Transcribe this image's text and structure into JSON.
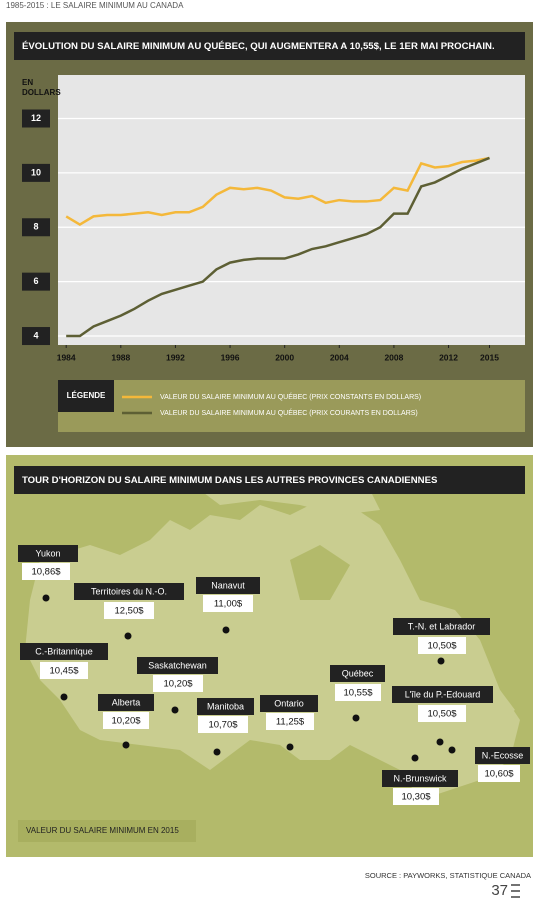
{
  "header": {
    "title": "1985-2015 : LE SALAIRE MINIMUM AU CANADA"
  },
  "chart_data": {
    "type": "line",
    "title": "ÉVOLUTION DU SALAIRE MINIMUM AU QUÉBEC, QUI AUGMENTERA A 10,55$, LE 1ER MAI PROCHAIN.",
    "y_label": "EN DOLLARS",
    "legend_title": "LÉGENDE",
    "x": [
      1984,
      1985,
      1986,
      1987,
      1988,
      1989,
      1990,
      1991,
      1992,
      1993,
      1994,
      1995,
      1996,
      1997,
      1998,
      1999,
      2000,
      2001,
      2002,
      2003,
      2004,
      2005,
      2006,
      2007,
      2008,
      2009,
      2010,
      2011,
      2012,
      2013,
      2014,
      2015
    ],
    "xlim": [
      1983.4,
      2017.6
    ],
    "xticks": [
      1984,
      1988,
      1992,
      1996,
      2000,
      2004,
      2008,
      2012,
      2015
    ],
    "ylim": [
      3.67,
      13.6
    ],
    "yticks": [
      4,
      6,
      8,
      10,
      12
    ],
    "grid": true,
    "series": [
      {
        "name": "VALEUR DU SALAIRE MINIMUM AU QUÉBEC (PRIX CONSTANTS EN DOLLARS)",
        "color": "#f4b83a",
        "values": [
          8.4,
          8.1,
          8.4,
          8.45,
          8.45,
          8.5,
          8.55,
          8.45,
          8.55,
          8.55,
          8.75,
          9.2,
          9.45,
          9.4,
          9.45,
          9.35,
          9.1,
          9.05,
          9.15,
          8.9,
          9.0,
          8.95,
          8.95,
          9.0,
          9.45,
          9.35,
          10.35,
          10.2,
          10.25,
          10.4,
          10.45,
          10.55
        ]
      },
      {
        "name": "VALEUR DU SALAIRE MINIMUM AU QUÉBEC (PRIX COURANTS EN DOLLARS)",
        "color": "#5d5f34",
        "values": [
          4.0,
          4.0,
          4.35,
          4.55,
          4.75,
          5.0,
          5.3,
          5.55,
          5.7,
          5.85,
          6.0,
          6.45,
          6.7,
          6.8,
          6.85,
          6.85,
          6.85,
          7.0,
          7.2,
          7.3,
          7.45,
          7.6,
          7.75,
          8.0,
          8.5,
          8.5,
          9.5,
          9.65,
          9.9,
          10.15,
          10.35,
          10.55
        ]
      }
    ]
  },
  "map": {
    "title": "TOUR D'HORIZON DU SALAIRE MINIMUM DANS LES AUTRES PROVINCES CANADIENNES",
    "provinces": [
      {
        "name": "Yukon",
        "wage": "10,86$"
      },
      {
        "name": "Territoires du N.-O.",
        "wage": "12,50$"
      },
      {
        "name": "Nanavut",
        "wage": "11,00$"
      },
      {
        "name": "C.-Britannique",
        "wage": "10,45$"
      },
      {
        "name": "Saskatchewan",
        "wage": "10,20$"
      },
      {
        "name": "Alberta",
        "wage": "10,20$"
      },
      {
        "name": "Manitoba",
        "wage": "10,70$"
      },
      {
        "name": "Ontario",
        "wage": "11,25$"
      },
      {
        "name": "Québec",
        "wage": "10,55$"
      },
      {
        "name": "T.-N. et Labrador",
        "wage": "10,50$"
      },
      {
        "name": "L'île du P.-Edouard",
        "wage": "10,50$"
      },
      {
        "name": "N.-Ecosse",
        "wage": "10,60$"
      },
      {
        "name": "N.-Brunswick",
        "wage": "10,30$"
      }
    ],
    "caption": "VALEUR DU SALAIRE MINIMUM EN 2015"
  },
  "footer": {
    "source": "SOURCE : PAYWORKS, STATISTIQUE CANADA",
    "page": "37"
  }
}
